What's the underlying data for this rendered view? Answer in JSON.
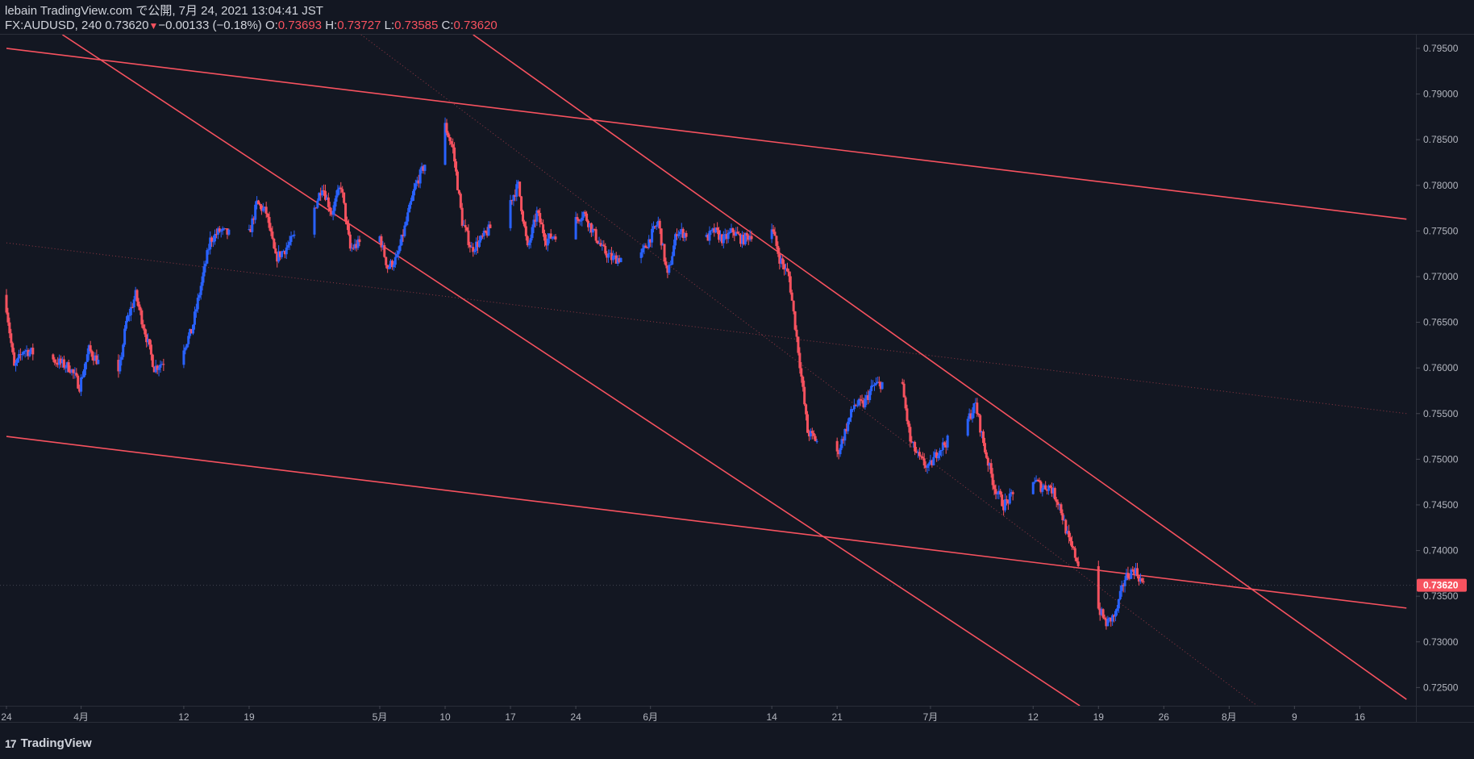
{
  "header": {
    "line1": "lebain TradingView.com で公開, 7月 24, 2021 13:04:41 JST",
    "symbol": "FX:AUDUSD, 240",
    "last": "0.73620",
    "change": "−0.00133 (−0.18%)",
    "o_label": "O:",
    "o": "0.73693",
    "h_label": "H:",
    "h": "0.73727",
    "l_label": "L:",
    "l": "0.73585",
    "c_label": "C:",
    "c": "0.73620"
  },
  "footer": {
    "brand": "TradingView",
    "logo_icon": "tradingview-logo-icon"
  },
  "colors": {
    "background": "#131722",
    "up": "#2962ff",
    "down": "#f7525f",
    "trendline": "#f7525f",
    "axis_text": "#b2b5be",
    "last_price_badge": "#f7525f"
  },
  "chart_data": {
    "type": "candlestick",
    "symbol": "FX:AUDUSD",
    "timeframe": "240",
    "ylim": [
      0.723,
      0.7965
    ],
    "y_ticks": [
      "0.72500",
      "0.73000",
      "0.73500",
      "0.74000",
      "0.74500",
      "0.75000",
      "0.75500",
      "0.76000",
      "0.76500",
      "0.77000",
      "0.77500",
      "0.78000",
      "0.78500",
      "0.79000",
      "0.79500"
    ],
    "last_price_label": "0.73620",
    "x_ticks": [
      {
        "label": "24",
        "date": "2021-03-24"
      },
      {
        "label": "4月",
        "date": "2021-04-01"
      },
      {
        "label": "12",
        "date": "2021-04-12"
      },
      {
        "label": "19",
        "date": "2021-04-19"
      },
      {
        "label": "5月",
        "date": "2021-05-03"
      },
      {
        "label": "10",
        "date": "2021-05-10"
      },
      {
        "label": "17",
        "date": "2021-05-17"
      },
      {
        "label": "24",
        "date": "2021-05-24"
      },
      {
        "label": "6月",
        "date": "2021-06-01"
      },
      {
        "label": "14",
        "date": "2021-06-14"
      },
      {
        "label": "21",
        "date": "2021-06-21"
      },
      {
        "label": "7月",
        "date": "2021-07-01"
      },
      {
        "label": "12",
        "date": "2021-07-12"
      },
      {
        "label": "19",
        "date": "2021-07-19"
      },
      {
        "label": "26",
        "date": "2021-07-26"
      },
      {
        "label": "8月",
        "date": "2021-08-02"
      },
      {
        "label": "9",
        "date": "2021-08-09"
      },
      {
        "label": "16",
        "date": "2021-08-16"
      }
    ],
    "price_path": [
      [
        "2021-03-24",
        0.768
      ],
      [
        "2021-03-25",
        0.76
      ],
      [
        "2021-03-26",
        0.762
      ],
      [
        "2021-03-29",
        0.761
      ],
      [
        "2021-03-31",
        0.76
      ],
      [
        "2021-04-01",
        0.758
      ],
      [
        "2021-04-02",
        0.762
      ],
      [
        "2021-04-05",
        0.758
      ],
      [
        "2021-04-06",
        0.765
      ],
      [
        "2021-04-07",
        0.768
      ],
      [
        "2021-04-08",
        0.764
      ],
      [
        "2021-04-09",
        0.76
      ],
      [
        "2021-04-12",
        0.762
      ],
      [
        "2021-04-13",
        0.764
      ],
      [
        "2021-04-14",
        0.769
      ],
      [
        "2021-04-15",
        0.774
      ],
      [
        "2021-04-16",
        0.775
      ],
      [
        "2021-04-19",
        0.774
      ],
      [
        "2021-04-20",
        0.778
      ],
      [
        "2021-04-21",
        0.777
      ],
      [
        "2021-04-22",
        0.772
      ],
      [
        "2021-04-23",
        0.773
      ],
      [
        "2021-04-26",
        0.777
      ],
      [
        "2021-04-27",
        0.78
      ],
      [
        "2021-04-28",
        0.777
      ],
      [
        "2021-04-29",
        0.78
      ],
      [
        "2021-04-30",
        0.773
      ],
      [
        "2021-05-03",
        0.775
      ],
      [
        "2021-05-04",
        0.771
      ],
      [
        "2021-05-05",
        0.772
      ],
      [
        "2021-05-06",
        0.776
      ],
      [
        "2021-05-07",
        0.78
      ],
      [
        "2021-05-10",
        0.787
      ],
      [
        "2021-05-11",
        0.784
      ],
      [
        "2021-05-12",
        0.776
      ],
      [
        "2021-05-13",
        0.773
      ],
      [
        "2021-05-14",
        0.774
      ],
      [
        "2021-05-17",
        0.778
      ],
      [
        "2021-05-18",
        0.78
      ],
      [
        "2021-05-19",
        0.773
      ],
      [
        "2021-05-20",
        0.777
      ],
      [
        "2021-05-21",
        0.774
      ],
      [
        "2021-05-24",
        0.776
      ],
      [
        "2021-05-25",
        0.777
      ],
      [
        "2021-05-26",
        0.775
      ],
      [
        "2021-05-27",
        0.773
      ],
      [
        "2021-05-28",
        0.772
      ],
      [
        "2021-05-31",
        0.772
      ],
      [
        "2021-06-01",
        0.774
      ],
      [
        "2021-06-02",
        0.776
      ],
      [
        "2021-06-03",
        0.77
      ],
      [
        "2021-06-04",
        0.775
      ],
      [
        "2021-06-07",
        0.774
      ],
      [
        "2021-06-08",
        0.775
      ],
      [
        "2021-06-09",
        0.774
      ],
      [
        "2021-06-10",
        0.775
      ],
      [
        "2021-06-11",
        0.774
      ],
      [
        "2021-06-14",
        0.776
      ],
      [
        "2021-06-15",
        0.772
      ],
      [
        "2021-06-16",
        0.77
      ],
      [
        "2021-06-17",
        0.762
      ],
      [
        "2021-06-18",
        0.753
      ],
      [
        "2021-06-21",
        0.75
      ],
      [
        "2021-06-22",
        0.753
      ],
      [
        "2021-06-23",
        0.756
      ],
      [
        "2021-06-24",
        0.756
      ],
      [
        "2021-06-25",
        0.758
      ],
      [
        "2021-06-28",
        0.759
      ],
      [
        "2021-06-29",
        0.752
      ],
      [
        "2021-06-30",
        0.75
      ],
      [
        "2021-07-01",
        0.749
      ],
      [
        "2021-07-02",
        0.751
      ],
      [
        "2021-07-05",
        0.754
      ],
      [
        "2021-07-06",
        0.756
      ],
      [
        "2021-07-07",
        0.751
      ],
      [
        "2021-07-08",
        0.747
      ],
      [
        "2021-07-09",
        0.745
      ],
      [
        "2021-07-12",
        0.748
      ],
      [
        "2021-07-13",
        0.747
      ],
      [
        "2021-07-14",
        0.747
      ],
      [
        "2021-07-15",
        0.745
      ],
      [
        "2021-07-16",
        0.741
      ],
      [
        "2021-07-19",
        0.734
      ],
      [
        "2021-07-20",
        0.732
      ],
      [
        "2021-07-21",
        0.733
      ],
      [
        "2021-07-22",
        0.737
      ],
      [
        "2021-07-23",
        0.738
      ],
      [
        "2021-07-24",
        0.7362
      ]
    ],
    "trendlines": [
      {
        "style": "solid",
        "points": [
          [
            "2021-03-24",
            0.795
          ],
          [
            "2021-08-21",
            0.7763
          ]
        ]
      },
      {
        "style": "solid",
        "points": [
          [
            "2021-03-24",
            0.7525
          ],
          [
            "2021-08-21",
            0.7337
          ]
        ]
      },
      {
        "style": "solid",
        "points": [
          [
            "2021-03-30",
            0.7965
          ],
          [
            "2021-07-17",
            0.723
          ]
        ]
      },
      {
        "style": "solid",
        "points": [
          [
            "2021-05-13",
            0.7965
          ],
          [
            "2021-08-21",
            0.7237
          ]
        ]
      },
      {
        "style": "dotted",
        "points": [
          [
            "2021-03-24",
            0.7737
          ],
          [
            "2021-08-21",
            0.755
          ]
        ]
      },
      {
        "style": "dotted",
        "points": [
          [
            "2021-05-01",
            0.7965
          ],
          [
            "2021-08-05",
            0.723
          ]
        ]
      }
    ]
  }
}
